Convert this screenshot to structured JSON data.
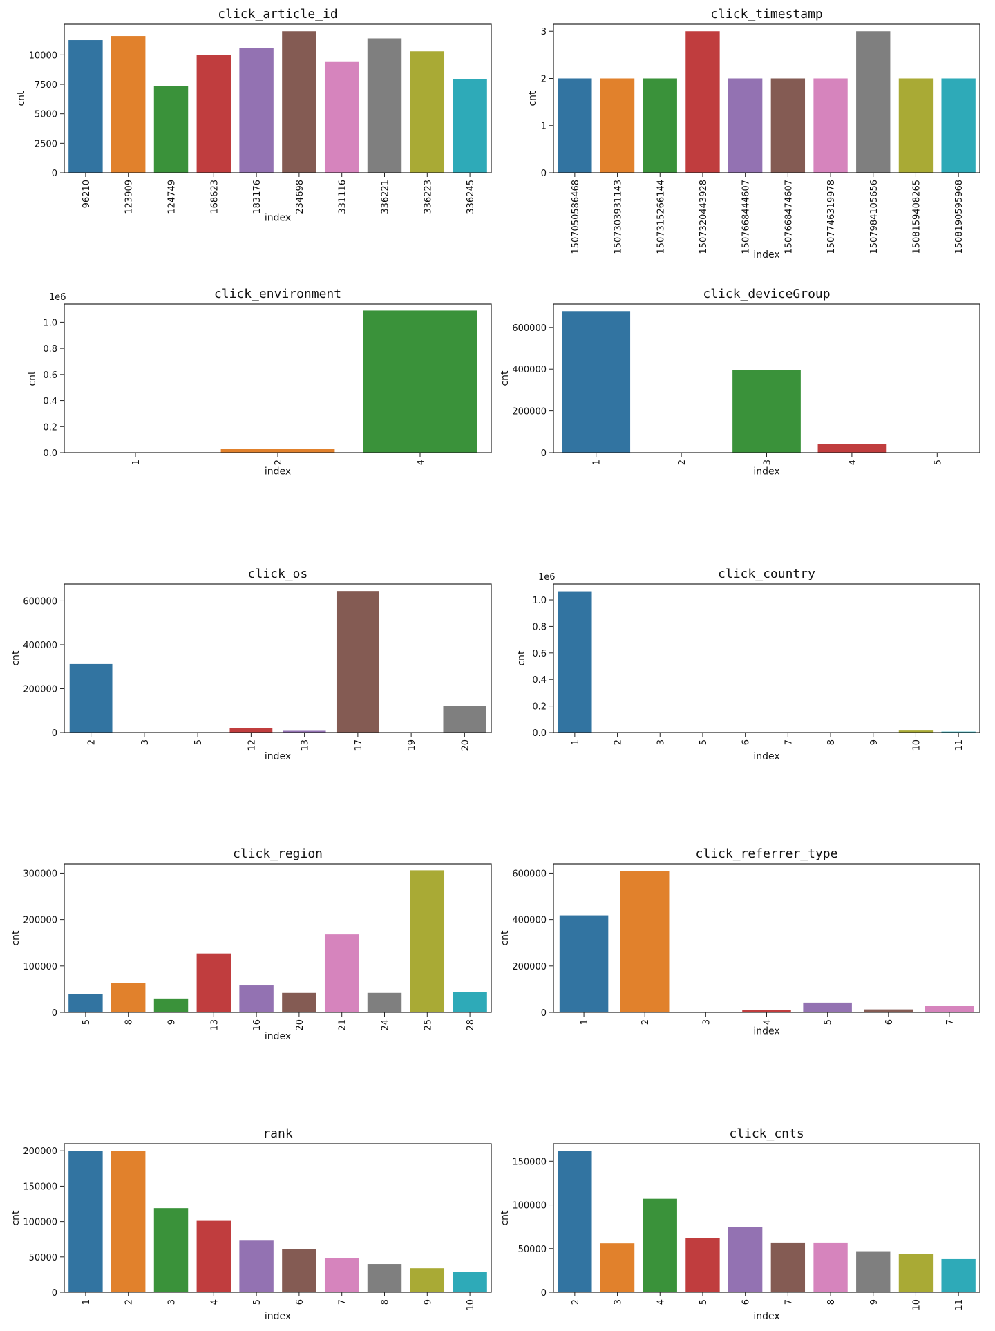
{
  "chart_data": [
    {
      "type": "bar",
      "title": "click_article_id",
      "xlabel": "index",
      "ylabel": "cnt",
      "categories": [
        "96210",
        "123909",
        "124749",
        "168623",
        "183176",
        "234698",
        "331116",
        "336221",
        "336223",
        "336245"
      ],
      "values": [
        11250,
        11600,
        7350,
        10000,
        10550,
        12000,
        9450,
        11400,
        10300,
        7950
      ],
      "ylim": [
        0,
        12600
      ],
      "yticks": [
        0,
        2500,
        5000,
        7500,
        10000
      ],
      "ytick_labels": [
        "0",
        "2500",
        "5000",
        "7500",
        "10000"
      ],
      "offset_text": ""
    },
    {
      "type": "bar",
      "title": "click_timestamp",
      "xlabel": "index",
      "ylabel": "cnt",
      "categories": [
        "1507050586468",
        "1507303931143",
        "1507315266144",
        "1507320443928",
        "1507668444607",
        "1507668474607",
        "1507746319978",
        "1507984105656",
        "1508159408265",
        "1508190595968"
      ],
      "values": [
        2,
        2,
        2,
        3,
        2,
        2,
        2,
        3,
        2,
        2
      ],
      "ylim": [
        0,
        3.15
      ],
      "yticks": [
        0,
        1,
        2,
        3
      ],
      "ytick_labels": [
        "0",
        "1",
        "2",
        "3"
      ],
      "offset_text": ""
    },
    {
      "type": "bar",
      "title": "click_environment",
      "xlabel": "index",
      "ylabel": "cnt",
      "categories": [
        "1",
        "2",
        "4"
      ],
      "values": [
        0.002,
        0.03,
        1.09
      ],
      "ylim": [
        0,
        1.14
      ],
      "yticks": [
        0,
        0.2,
        0.4,
        0.6,
        0.8,
        1.0
      ],
      "ytick_labels": [
        "0.0",
        "0.2",
        "0.4",
        "0.6",
        "0.8",
        "1.0"
      ],
      "offset_text": "1e6"
    },
    {
      "type": "bar",
      "title": "click_deviceGroup",
      "xlabel": "index",
      "ylabel": "cnt",
      "categories": [
        "1",
        "2",
        "3",
        "4",
        "5"
      ],
      "values": [
        678000,
        0,
        395000,
        42000,
        500
      ],
      "ylim": [
        0,
        712000
      ],
      "yticks": [
        0,
        200000,
        400000,
        600000
      ],
      "ytick_labels": [
        "0",
        "200000",
        "400000",
        "600000"
      ],
      "offset_text": ""
    },
    {
      "type": "bar",
      "title": "click_os",
      "xlabel": "index",
      "ylabel": "cnt",
      "categories": [
        "2",
        "3",
        "5",
        "12",
        "13",
        "17",
        "19",
        "20"
      ],
      "values": [
        312000,
        400,
        500,
        19000,
        8000,
        645000,
        500,
        121000
      ],
      "ylim": [
        0,
        677000
      ],
      "yticks": [
        0,
        200000,
        400000,
        600000
      ],
      "ytick_labels": [
        "0",
        "200000",
        "400000",
        "600000"
      ],
      "offset_text": ""
    },
    {
      "type": "bar",
      "title": "click_country",
      "xlabel": "index",
      "ylabel": "cnt",
      "categories": [
        "1",
        "2",
        "3",
        "5",
        "6",
        "7",
        "8",
        "9",
        "10",
        "11"
      ],
      "values": [
        1.065,
        0.002,
        0.002,
        0.002,
        0.002,
        0.002,
        0.002,
        0.002,
        0.015,
        0.007
      ],
      "ylim": [
        0,
        1.12
      ],
      "yticks": [
        0,
        0.2,
        0.4,
        0.6,
        0.8,
        1.0
      ],
      "ytick_labels": [
        "0.0",
        "0.2",
        "0.4",
        "0.6",
        "0.8",
        "1.0"
      ],
      "offset_text": "1e6"
    },
    {
      "type": "bar",
      "title": "click_region",
      "xlabel": "index",
      "ylabel": "cnt",
      "categories": [
        "5",
        "8",
        "9",
        "13",
        "16",
        "20",
        "21",
        "24",
        "25",
        "28"
      ],
      "values": [
        40000,
        64000,
        30000,
        127000,
        58000,
        42000,
        168000,
        42000,
        306000,
        44000
      ],
      "ylim": [
        0,
        320000
      ],
      "yticks": [
        0,
        100000,
        200000,
        300000
      ],
      "ytick_labels": [
        "0",
        "100000",
        "200000",
        "300000"
      ],
      "offset_text": ""
    },
    {
      "type": "bar",
      "title": "click_referrer_type",
      "xlabel": "index",
      "ylabel": "cnt",
      "categories": [
        "1",
        "2",
        "3",
        "4",
        "5",
        "6",
        "7"
      ],
      "values": [
        418000,
        610000,
        1000,
        9000,
        42000,
        13000,
        29000
      ],
      "ylim": [
        0,
        640000
      ],
      "yticks": [
        0,
        200000,
        400000,
        600000
      ],
      "ytick_labels": [
        "0",
        "200000",
        "400000",
        "600000"
      ],
      "offset_text": ""
    },
    {
      "type": "bar",
      "title": "rank",
      "xlabel": "index",
      "ylabel": "cnt",
      "categories": [
        "1",
        "2",
        "3",
        "4",
        "5",
        "6",
        "7",
        "8",
        "9",
        "10"
      ],
      "values": [
        200000,
        200000,
        119000,
        101000,
        73000,
        61000,
        48000,
        40000,
        34000,
        29000
      ],
      "ylim": [
        0,
        210000
      ],
      "yticks": [
        0,
        50000,
        100000,
        150000,
        200000
      ],
      "ytick_labels": [
        "0",
        "50000",
        "100000",
        "150000",
        "200000"
      ],
      "offset_text": ""
    },
    {
      "type": "bar",
      "title": "click_cnts",
      "xlabel": "index",
      "ylabel": "cnt",
      "categories": [
        "2",
        "3",
        "4",
        "5",
        "6",
        "7",
        "8",
        "9",
        "10",
        "11"
      ],
      "values": [
        162000,
        56000,
        107000,
        62000,
        75000,
        57000,
        57000,
        47000,
        44000,
        38000
      ],
      "ylim": [
        0,
        170000
      ],
      "yticks": [
        0,
        50000,
        100000,
        150000
      ],
      "ytick_labels": [
        "0",
        "50000",
        "100000",
        "150000"
      ],
      "offset_text": ""
    }
  ],
  "palette": [
    "#3274a1",
    "#e1812c",
    "#3a923a",
    "#c03d3e",
    "#9372b2",
    "#845b53",
    "#d684bd",
    "#7f7f7f",
    "#a9aa35",
    "#2eaab8"
  ]
}
